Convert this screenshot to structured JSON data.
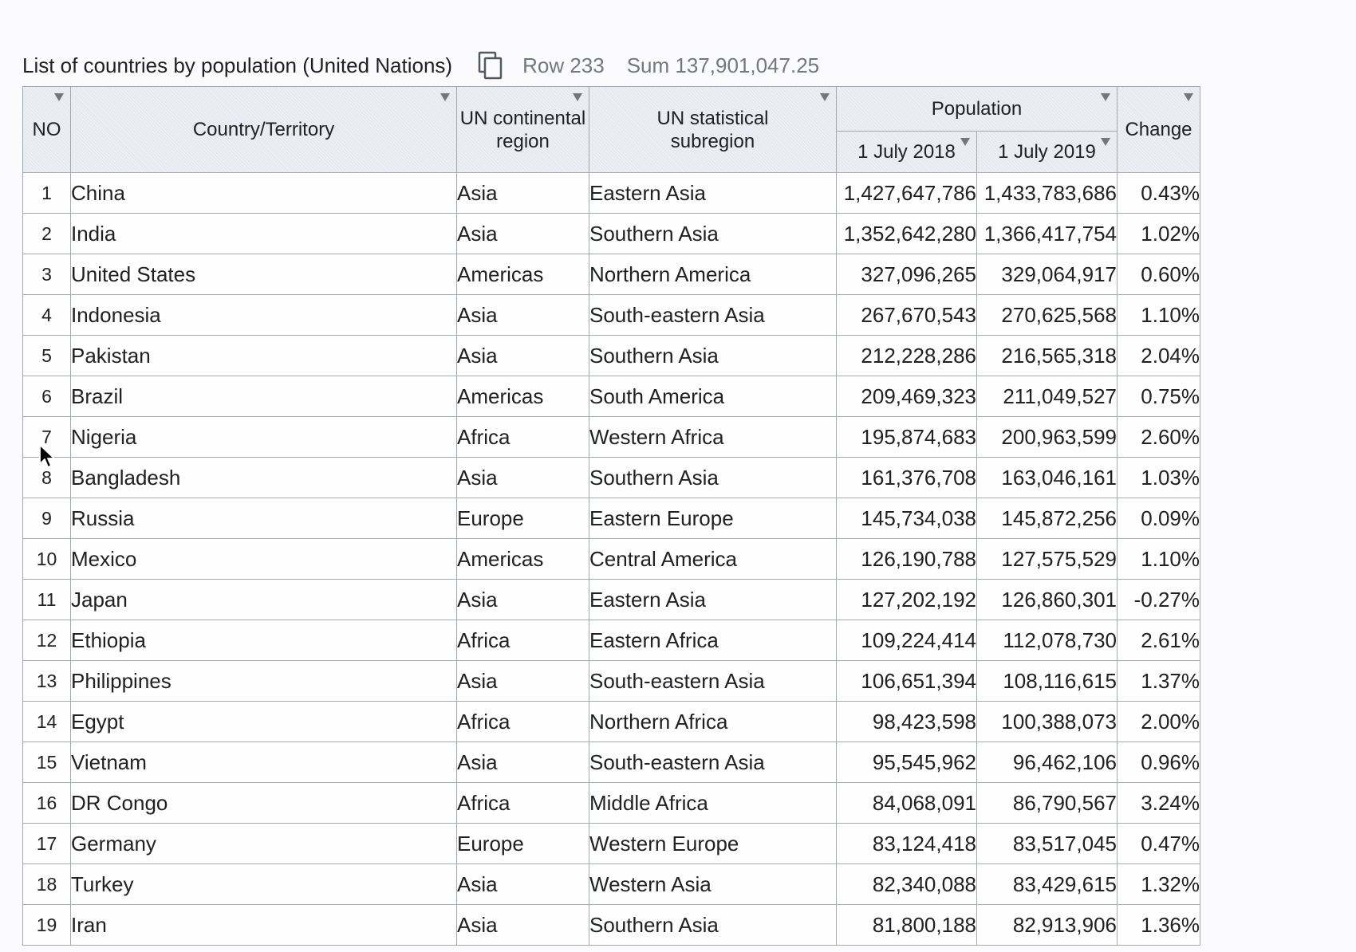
{
  "toolbar": {
    "caption": "List of countries by population (United Nations)",
    "copy_icon": "copy-icon",
    "row_stat": "Row 233",
    "sum_stat": "Sum 137,901,047.25"
  },
  "columns": {
    "no": "NO",
    "country": "Country/Territory",
    "continental_l1": "UN continental",
    "continental_l2": "region",
    "statistical_l1": "UN statistical",
    "statistical_l2": "subregion",
    "population": "Population",
    "pop2018": "1 July 2018",
    "pop2019": "1 July 2019",
    "change": "Change"
  },
  "rows": [
    {
      "no": "1",
      "country": "China",
      "region": "Asia",
      "subregion": "Eastern Asia",
      "pop2018": "1,427,647,786",
      "pop2019": "1,433,783,686",
      "change": "0.43%"
    },
    {
      "no": "2",
      "country": "India",
      "region": "Asia",
      "subregion": "Southern Asia",
      "pop2018": "1,352,642,280",
      "pop2019": "1,366,417,754",
      "change": "1.02%"
    },
    {
      "no": "3",
      "country": "United States",
      "region": "Americas",
      "subregion": "Northern America",
      "pop2018": "327,096,265",
      "pop2019": "329,064,917",
      "change": "0.60%"
    },
    {
      "no": "4",
      "country": "Indonesia",
      "region": "Asia",
      "subregion": "South-eastern Asia",
      "pop2018": "267,670,543",
      "pop2019": "270,625,568",
      "change": "1.10%"
    },
    {
      "no": "5",
      "country": "Pakistan",
      "region": "Asia",
      "subregion": "Southern Asia",
      "pop2018": "212,228,286",
      "pop2019": "216,565,318",
      "change": "2.04%"
    },
    {
      "no": "6",
      "country": "Brazil",
      "region": "Americas",
      "subregion": "South America",
      "pop2018": "209,469,323",
      "pop2019": "211,049,527",
      "change": "0.75%"
    },
    {
      "no": "7",
      "country": "Nigeria",
      "region": "Africa",
      "subregion": "Western Africa",
      "pop2018": "195,874,683",
      "pop2019": "200,963,599",
      "change": "2.60%"
    },
    {
      "no": "8",
      "country": "Bangladesh",
      "region": "Asia",
      "subregion": "Southern Asia",
      "pop2018": "161,376,708",
      "pop2019": "163,046,161",
      "change": "1.03%"
    },
    {
      "no": "9",
      "country": "Russia",
      "region": "Europe",
      "subregion": "Eastern Europe",
      "pop2018": "145,734,038",
      "pop2019": "145,872,256",
      "change": "0.09%"
    },
    {
      "no": "10",
      "country": "Mexico",
      "region": "Americas",
      "subregion": "Central America",
      "pop2018": "126,190,788",
      "pop2019": "127,575,529",
      "change": "1.10%"
    },
    {
      "no": "11",
      "country": "Japan",
      "region": "Asia",
      "subregion": "Eastern Asia",
      "pop2018": "127,202,192",
      "pop2019": "126,860,301",
      "change": "-0.27%"
    },
    {
      "no": "12",
      "country": "Ethiopia",
      "region": "Africa",
      "subregion": "Eastern Africa",
      "pop2018": "109,224,414",
      "pop2019": "112,078,730",
      "change": "2.61%"
    },
    {
      "no": "13",
      "country": "Philippines",
      "region": "Asia",
      "subregion": "South-eastern Asia",
      "pop2018": "106,651,394",
      "pop2019": "108,116,615",
      "change": "1.37%"
    },
    {
      "no": "14",
      "country": "Egypt",
      "region": "Africa",
      "subregion": "Northern Africa",
      "pop2018": "98,423,598",
      "pop2019": "100,388,073",
      "change": "2.00%"
    },
    {
      "no": "15",
      "country": "Vietnam",
      "region": "Asia",
      "subregion": "South-eastern Asia",
      "pop2018": "95,545,962",
      "pop2019": "96,462,106",
      "change": "0.96%"
    },
    {
      "no": "16",
      "country": "DR Congo",
      "region": "Africa",
      "subregion": "Middle Africa",
      "pop2018": "84,068,091",
      "pop2019": "86,790,567",
      "change": "3.24%"
    },
    {
      "no": "17",
      "country": "Germany",
      "region": "Europe",
      "subregion": "Western Europe",
      "pop2018": "83,124,418",
      "pop2019": "83,517,045",
      "change": "0.47%"
    },
    {
      "no": "18",
      "country": "Turkey",
      "region": "Asia",
      "subregion": "Western Asia",
      "pop2018": "82,340,088",
      "pop2019": "83,429,615",
      "change": "1.32%"
    },
    {
      "no": "19",
      "country": "Iran",
      "region": "Asia",
      "subregion": "Southern Asia",
      "pop2018": "81,800,188",
      "pop2019": "82,913,906",
      "change": "1.36%"
    }
  ],
  "colors": {
    "header_bg": "#e6e9f0",
    "border": "#a2a9b1",
    "muted_text": "#72777d",
    "page_bg": "#fbfbfe"
  },
  "cursor_icon": "mouse-pointer-icon"
}
